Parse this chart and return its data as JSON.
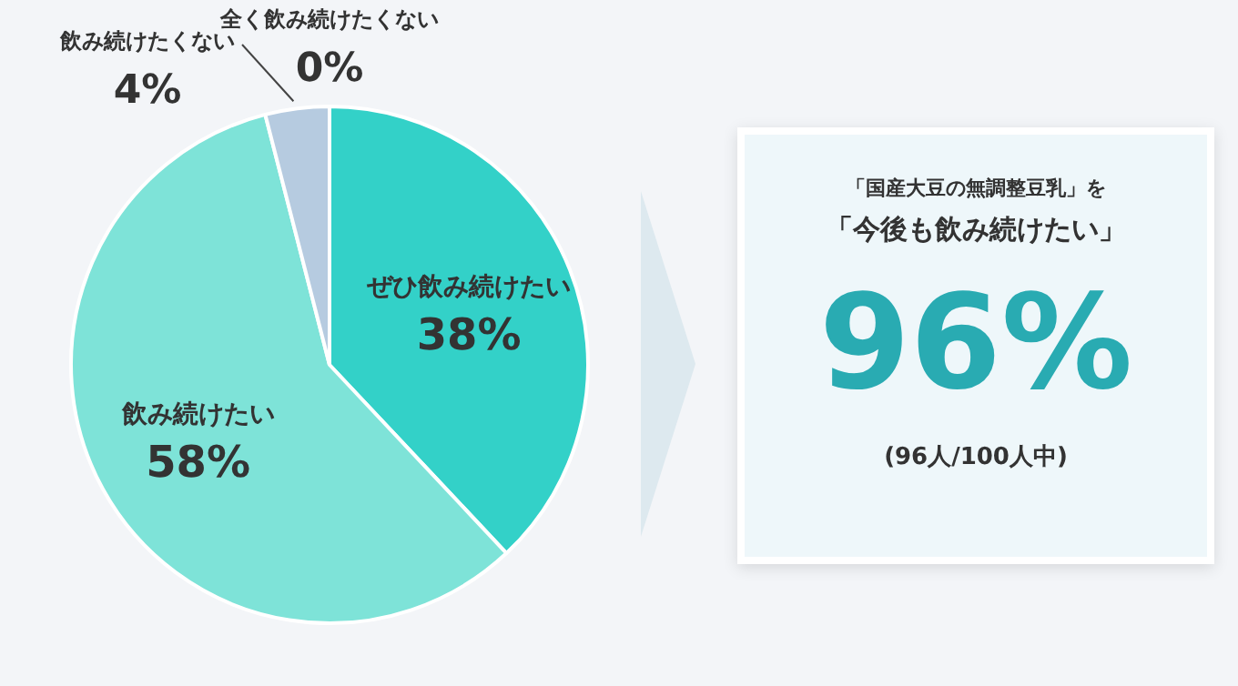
{
  "chart_data": [
    {
      "type": "pie",
      "categories": [
        "ぜひ飲み続けたい",
        "飲み続けたい",
        "飲み続けたくない",
        "全く飲み続けたくない"
      ],
      "values": [
        38,
        58,
        4,
        0
      ],
      "value_labels": [
        "38%",
        "58%",
        "4%",
        "0%"
      ],
      "colors": [
        "#33d1c8",
        "#7ee3d8",
        "#b6cbe0",
        "#c9d3dd"
      ],
      "legend": false
    },
    {
      "type": "other",
      "title": "「国産大豆の無調整豆乳」を",
      "subtitle": "「今後も飲み続けたい」",
      "annotations": [
        "96%",
        "(96人/100人中)"
      ]
    }
  ]
}
